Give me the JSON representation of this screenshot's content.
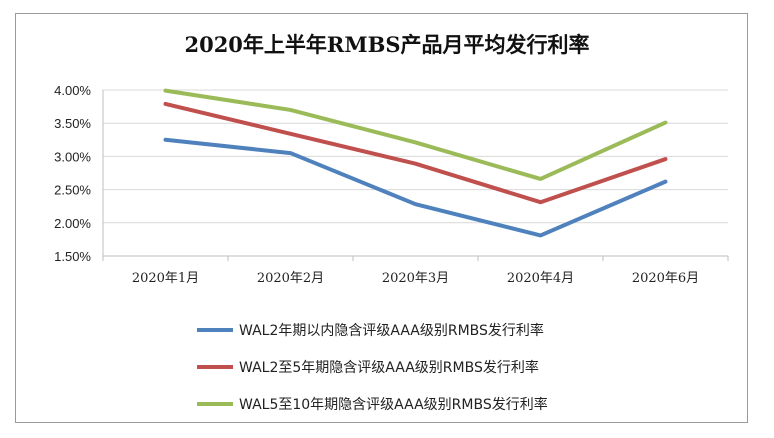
{
  "chart_data": {
    "type": "line",
    "title": "2020年上半年RMBS产品月平均发行利率",
    "xlabel": "",
    "ylabel": "",
    "categories": [
      "2020年1月",
      "2020年2月",
      "2020年3月",
      "2020年4月",
      "2020年6月"
    ],
    "ylim": [
      1.5,
      4.0
    ],
    "yticks": [
      "4.00%",
      "3.50%",
      "3.00%",
      "2.50%",
      "2.00%",
      "1.50%"
    ],
    "ytick_values": [
      4.0,
      3.5,
      3.0,
      2.5,
      2.0,
      1.5
    ],
    "grid": true,
    "legend_position": "bottom",
    "series": [
      {
        "name": "WAL2年期以内隐含评级AAA级别RMBS发行利率",
        "color": "#4F81BD",
        "values": [
          3.25,
          3.05,
          2.28,
          1.81,
          2.62
        ]
      },
      {
        "name": "WAL2至5年期隐含评级AAA级别RMBS发行利率",
        "color": "#C0504D",
        "values": [
          3.79,
          3.34,
          2.89,
          2.31,
          2.96
        ]
      },
      {
        "name": "WAL5至10年期隐含评级AAA级别RMBS发行利率",
        "color": "#9BBB59",
        "values": [
          3.99,
          3.7,
          3.21,
          2.66,
          3.51
        ]
      }
    ]
  }
}
